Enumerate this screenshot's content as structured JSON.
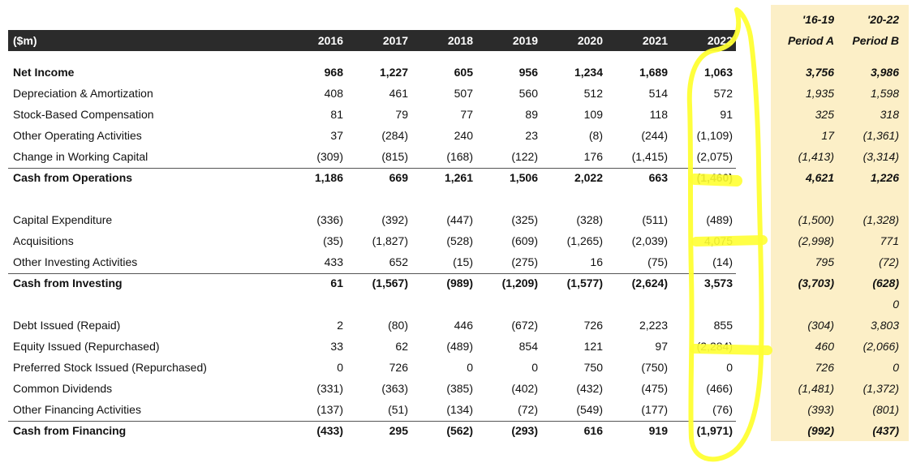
{
  "header": {
    "unit_label": "($m)",
    "years": [
      "2016",
      "2017",
      "2018",
      "2019",
      "2020",
      "2021",
      "2022"
    ],
    "period_a_range": "'16-19",
    "period_a_name": "Period A",
    "period_b_range": "'20-22",
    "period_b_name": "Period B"
  },
  "rows": [
    {
      "label": "Net Income",
      "bold": true,
      "values": [
        "968",
        "1,227",
        "605",
        "956",
        "1,234",
        "1,689",
        "1,063"
      ],
      "period_a": "3,756",
      "period_b": "3,986"
    },
    {
      "label": "Depreciation & Amortization",
      "bold": false,
      "values": [
        "408",
        "461",
        "507",
        "560",
        "512",
        "514",
        "572"
      ],
      "period_a": "1,935",
      "period_b": "1,598"
    },
    {
      "label": "Stock-Based Compensation",
      "bold": false,
      "values": [
        "81",
        "79",
        "77",
        "89",
        "109",
        "118",
        "91"
      ],
      "period_a": "325",
      "period_b": "318"
    },
    {
      "label": "Other Operating Activities",
      "bold": false,
      "values": [
        "37",
        "(284)",
        "240",
        "23",
        "(8)",
        "(244)",
        "(1,109)"
      ],
      "period_a": "17",
      "period_b": "(1,361)"
    },
    {
      "label": "Change in Working Capital",
      "bold": false,
      "values": [
        "(309)",
        "(815)",
        "(168)",
        "(122)",
        "176",
        "(1,415)",
        "(2,075)"
      ],
      "period_a": "(1,413)",
      "period_b": "(3,314)"
    },
    {
      "label": "Cash from Operations",
      "bold": true,
      "values": [
        "1,186",
        "669",
        "1,261",
        "1,506",
        "2,022",
        "663",
        "(1,460)"
      ],
      "period_a": "4,621",
      "period_b": "1,226"
    },
    {
      "label": "",
      "bold": false,
      "values": [
        "",
        "",
        "",
        "",
        "",
        "",
        ""
      ],
      "period_a": "",
      "period_b": ""
    },
    {
      "label": "Capital Expenditure",
      "bold": false,
      "values": [
        "(336)",
        "(392)",
        "(447)",
        "(325)",
        "(328)",
        "(511)",
        "(489)"
      ],
      "period_a": "(1,500)",
      "period_b": "(1,328)"
    },
    {
      "label": "Acquisitions",
      "bold": false,
      "values": [
        "(35)",
        "(1,827)",
        "(528)",
        "(609)",
        "(1,265)",
        "(2,039)",
        "4,075"
      ],
      "period_a": "(2,998)",
      "period_b": "771"
    },
    {
      "label": "Other Investing Activities",
      "bold": false,
      "values": [
        "433",
        "652",
        "(15)",
        "(275)",
        "16",
        "(75)",
        "(14)"
      ],
      "period_a": "795",
      "period_b": "(72)"
    },
    {
      "label": "Cash from Investing",
      "bold": true,
      "values": [
        "61",
        "(1,567)",
        "(989)",
        "(1,209)",
        "(1,577)",
        "(2,624)",
        "3,573"
      ],
      "period_a": "(3,703)",
      "period_b": "(628)"
    },
    {
      "label": "",
      "bold": false,
      "values": [
        "",
        "",
        "",
        "",
        "",
        "",
        ""
      ],
      "period_a": "",
      "period_b": "0"
    },
    {
      "label": "Debt Issued (Repaid)",
      "bold": false,
      "values": [
        "2",
        "(80)",
        "446",
        "(672)",
        "726",
        "2,223",
        "855"
      ],
      "period_a": "(304)",
      "period_b": "3,803"
    },
    {
      "label": "Equity Issued (Repurchased)",
      "bold": false,
      "values": [
        "33",
        "62",
        "(489)",
        "854",
        "121",
        "97",
        "(2,284)"
      ],
      "period_a": "460",
      "period_b": "(2,066)"
    },
    {
      "label": "Preferred Stock Issued (Repurchased)",
      "bold": false,
      "values": [
        "0",
        "726",
        "0",
        "0",
        "750",
        "(750)",
        "0"
      ],
      "period_a": "726",
      "period_b": "0"
    },
    {
      "label": "Common Dividends",
      "bold": false,
      "values": [
        "(331)",
        "(363)",
        "(385)",
        "(402)",
        "(432)",
        "(475)",
        "(466)"
      ],
      "period_a": "(1,481)",
      "period_b": "(1,372)"
    },
    {
      "label": "Other Financing Activities",
      "bold": false,
      "values": [
        "(137)",
        "(51)",
        "(134)",
        "(72)",
        "(549)",
        "(177)",
        "(76)"
      ],
      "period_a": "(393)",
      "period_b": "(801)"
    },
    {
      "label": "Cash from Financing",
      "bold": true,
      "values": [
        "(433)",
        "295",
        "(562)",
        "(293)",
        "616",
        "919",
        "(1,971)"
      ],
      "period_a": "(992)",
      "period_b": "(437)"
    }
  ],
  "colors": {
    "header_bg": "#2b2b2b",
    "period_bg": "#fcefc7",
    "highlight": "#ffff33"
  }
}
